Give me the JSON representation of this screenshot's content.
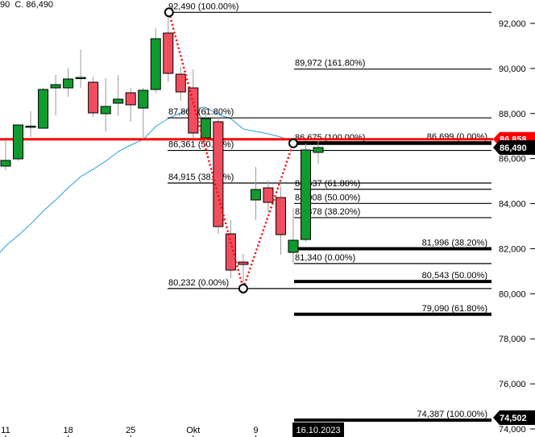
{
  "header": {
    "ohlc_text": "90  C. 86,490"
  },
  "chart_data": {
    "type": "candlestick",
    "ylim": [
      74000,
      93000
    ],
    "y_ticks": [
      "92,000",
      "90,000",
      "88,000",
      "86,000",
      "84,000",
      "82,000",
      "80,000",
      "78,000",
      "76,000",
      "74,000"
    ],
    "y_tick_values": [
      92000,
      90000,
      88000,
      86000,
      84000,
      82000,
      80000,
      78000,
      76000,
      74000
    ],
    "x_ticks": [
      {
        "label": "11",
        "index": 0
      },
      {
        "label": "18",
        "index": 5
      },
      {
        "label": "25",
        "index": 10
      },
      {
        "label": "Okt",
        "index": 15
      },
      {
        "label": "9",
        "index": 20
      }
    ],
    "current_date_label": "16.10.2023",
    "candles": [
      [
        85666,
        86847,
        85487,
        85917
      ],
      [
        85988,
        87500,
        85900,
        87491
      ],
      [
        87419,
        88099,
        86954,
        87440
      ],
      [
        87348,
        89137,
        87348,
        89066
      ],
      [
        89137,
        89710,
        87920,
        89280
      ],
      [
        89137,
        90032,
        88743,
        89531
      ],
      [
        89567,
        90819,
        89137,
        89600
      ],
      [
        89388,
        89638,
        87849,
        88028
      ],
      [
        87992,
        89567,
        87205,
        88314
      ],
      [
        88457,
        89710,
        87885,
        88636
      ],
      [
        88922,
        89137,
        87634,
        88385
      ],
      [
        88242,
        89137,
        86882,
        89030
      ],
      [
        89066,
        91785,
        88900,
        91320
      ],
      [
        91571,
        92490,
        89423,
        89781
      ],
      [
        89745,
        90068,
        88564,
        88958
      ],
      [
        89137,
        89960,
        86900,
        87133
      ],
      [
        86918,
        88278,
        86596,
        87777
      ],
      [
        87634,
        87850,
        82660,
        82982
      ],
      [
        82660,
        83268,
        80691,
        81049
      ],
      [
        81407,
        81765,
        80232,
        81300
      ],
      [
        84163,
        85630,
        83268,
        84628
      ],
      [
        84700,
        85022,
        83600,
        84055
      ],
      [
        84270,
        84771,
        81729,
        82624
      ],
      [
        81837,
        83805,
        81340,
        82374
      ],
      [
        82409,
        86675,
        82302,
        86382
      ],
      [
        86274,
        86775,
        85773,
        86490
      ]
    ],
    "moving_average": [
      82123,
      82588,
      83089,
      83662,
      84163,
      84700,
      85201,
      85523,
      85881,
      86310,
      86596,
      86847,
      87419,
      87777,
      88028,
      88207,
      88278,
      87956,
      87777,
      87312,
      87205,
      87097,
      86954,
      86740
    ],
    "fib_levels": [
      {
        "price": 92490,
        "label": "92,490 (100.00%)",
        "group": "a"
      },
      {
        "price": 87807,
        "label": "87,807 (61.80%)",
        "group": "a"
      },
      {
        "price": 86361,
        "label": "86,361 (50.00%)",
        "group": "a"
      },
      {
        "price": 84915,
        "label": "84,915 (38.20%)",
        "group": "a"
      },
      {
        "price": 80232,
        "label": "80,232 (0.00%)",
        "group": "a"
      },
      {
        "price": 89972,
        "label": "89,972 (161.80%)",
        "group": "b"
      },
      {
        "price": 86675,
        "label": "86,675 (100.00%)",
        "group": "b"
      },
      {
        "price": 84637,
        "label": "84,637 (61.80%)",
        "group": "b"
      },
      {
        "price": 84008,
        "label": "84,008 (50.00%)",
        "group": "b"
      },
      {
        "price": 83378,
        "label": "83,378 (38.20%)",
        "group": "b"
      },
      {
        "price": 81340,
        "label": "81,340 (0.00%)",
        "group": "b"
      },
      {
        "price": 86699,
        "label": "86,699 (0.00%)",
        "group": "c"
      },
      {
        "price": 81996,
        "label": "81,996 (38.20%)",
        "group": "c"
      },
      {
        "price": 80543,
        "label": "80,543 (50.00%)",
        "group": "c"
      },
      {
        "price": 79090,
        "label": "79,090 (61.80%)",
        "group": "c"
      },
      {
        "price": 74387,
        "label": "74,387 (100.00%)",
        "group": "c"
      }
    ],
    "horizontal_line": {
      "price": 86858,
      "color": "#ff0000"
    },
    "price_tags": [
      {
        "price": 86858,
        "label": "86,858",
        "color": "#ff0000"
      },
      {
        "price": 86490,
        "label": "86,490",
        "color": "#000000"
      },
      {
        "price": 74502,
        "label": "74,502",
        "color": "#000000"
      }
    ],
    "swing_points": [
      {
        "index": 13,
        "price": 92490
      },
      {
        "index": 19,
        "price": 80232
      },
      {
        "index": 23,
        "price": 86675
      }
    ],
    "colors": {
      "up": "#0f9b2e",
      "down": "#f04e5e",
      "ma": "#2a9fdc",
      "swing": "#ff0000"
    }
  }
}
